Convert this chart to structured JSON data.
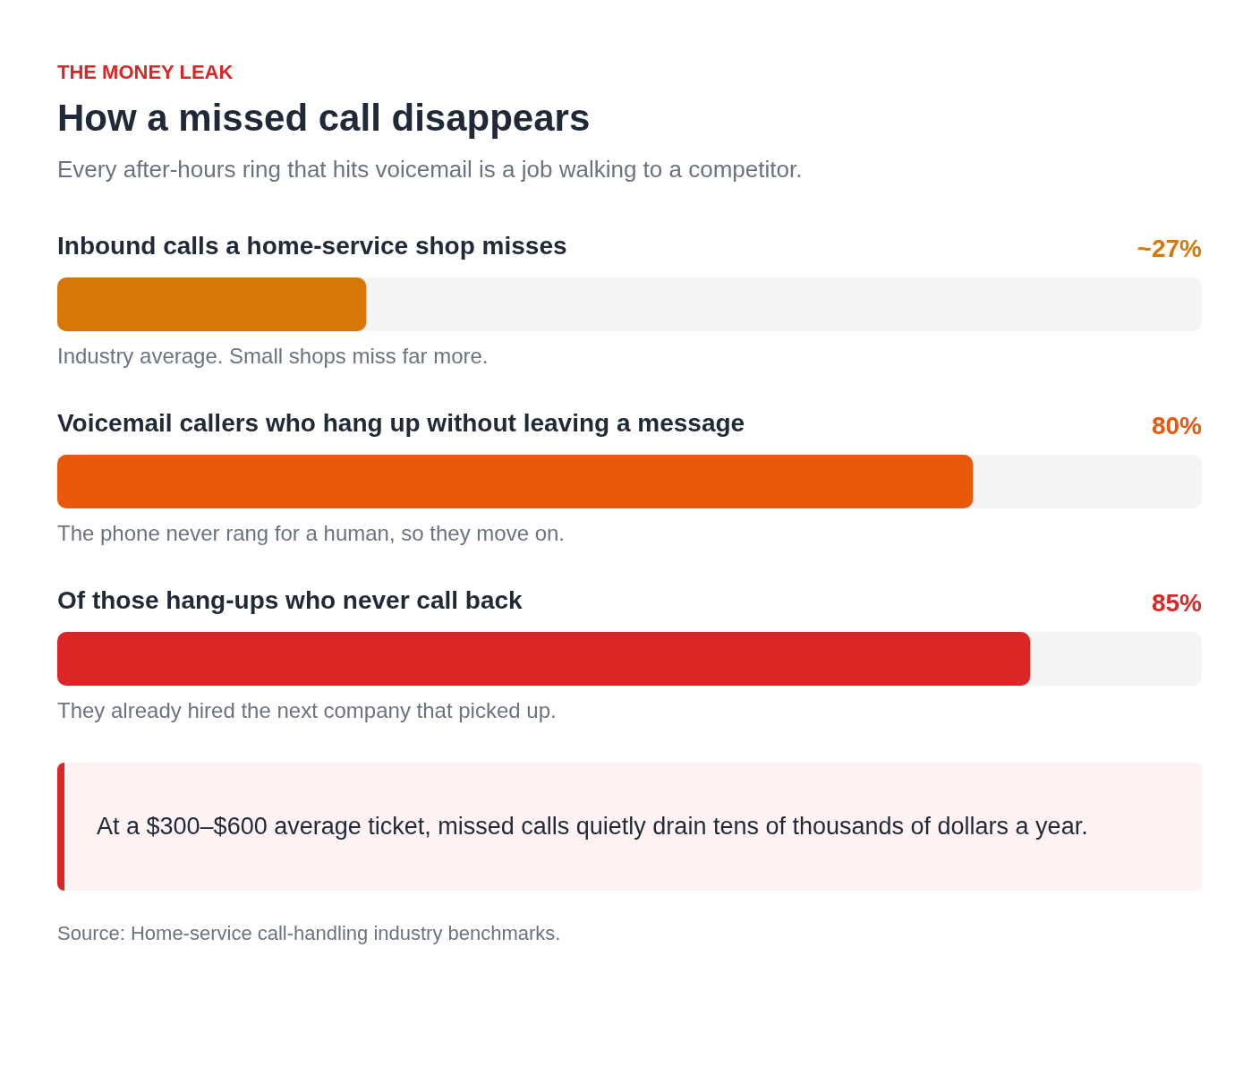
{
  "chart_data": {
    "type": "bar",
    "orientation": "horizontal",
    "title": "How a missed call disappears",
    "subtitle": "Every after-hours ring that hits voicemail is a job walking to a competitor.",
    "categories": [
      "Inbound calls a home-service shop misses",
      "Voicemail callers who hang up without leaving a message",
      "Of those hang-ups who never call back"
    ],
    "values": [
      27,
      80,
      85
    ],
    "colors": [
      "#d97706",
      "#ea580c",
      "#dc2626"
    ],
    "value_labels": [
      "~27%",
      "80%",
      "85%"
    ],
    "xlim": [
      0,
      100
    ],
    "annotations": [
      "THE MONEY LEAK",
      "Industry average. Small shops miss far more.",
      "The phone never rang for a human, so they move on.",
      "They already hired the next company that picked up.",
      "At a $300–$600 average ticket, missed calls quietly drain tens of thousands of dollars a year.",
      "Source: Home-service call-handling industry benchmarks."
    ]
  }
}
